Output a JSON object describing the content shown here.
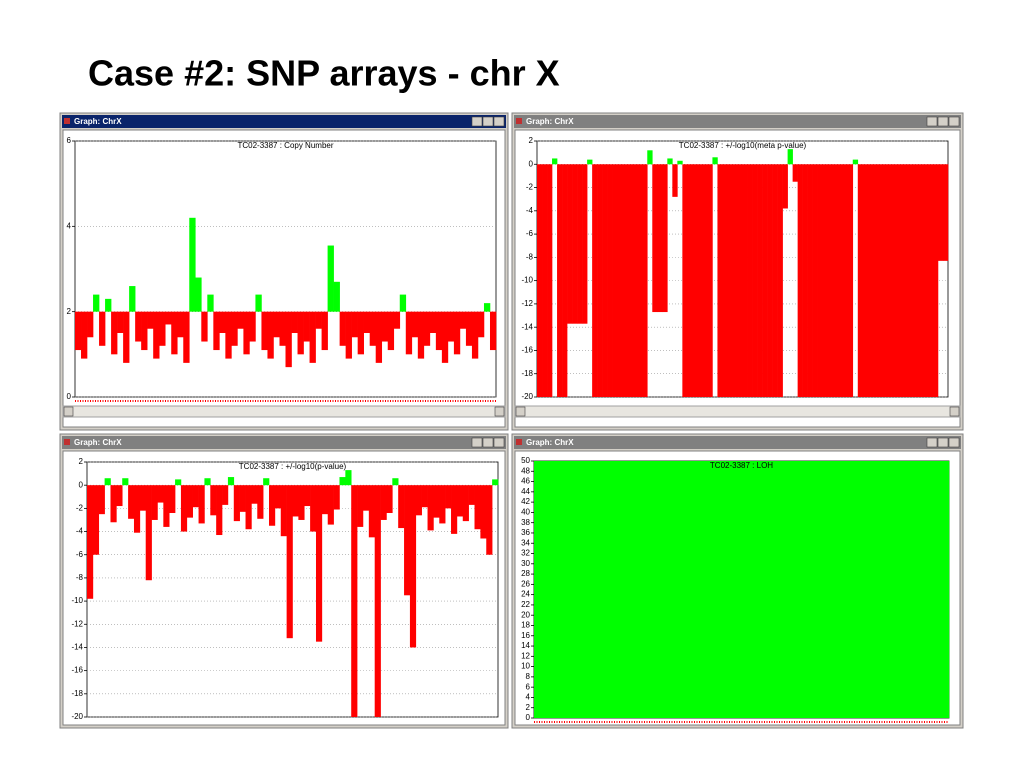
{
  "title": "Case #2: SNP arrays - chr X",
  "chart_data": [
    {
      "type": "bar",
      "window_title": "Graph: ChrX",
      "title": "TC02-3387 : Copy Number",
      "baseline": 2,
      "color": "#ff0000",
      "color_above": "#00ff00",
      "grid": true,
      "ylim": [
        0,
        6
      ],
      "yticks": [
        0,
        2,
        4,
        6
      ],
      "values": [
        1.1,
        0.9,
        1.4,
        2.4,
        1.2,
        2.3,
        1.0,
        1.5,
        0.8,
        2.6,
        1.3,
        1.1,
        1.6,
        0.9,
        1.2,
        1.7,
        1.0,
        1.4,
        0.8,
        4.2,
        2.8,
        1.3,
        2.4,
        1.1,
        1.5,
        0.9,
        1.2,
        1.6,
        1.0,
        1.3,
        2.4,
        1.1,
        0.9,
        1.4,
        1.2,
        0.7,
        1.5,
        1.0,
        1.3,
        0.8,
        1.6,
        1.1,
        3.55,
        2.7,
        1.2,
        0.9,
        1.4,
        1.0,
        1.5,
        1.2,
        0.8,
        1.3,
        1.1,
        1.6,
        2.4,
        1.0,
        1.4,
        0.9,
        1.2,
        1.5,
        1.1,
        0.8,
        1.3,
        1.0,
        1.6,
        1.2,
        0.9,
        1.4,
        2.2,
        1.1
      ]
    },
    {
      "type": "bar",
      "window_title": "Graph: ChrX",
      "title": "TC02-3387 : +/-log10(meta p-value)",
      "baseline": 0,
      "color": "#ff0000",
      "color_above": "#00ff00",
      "grid": true,
      "ylim": [
        -20,
        2
      ],
      "yticks": [
        -20,
        -18,
        -16,
        -14,
        -12,
        -10,
        -8,
        -6,
        -4,
        -2,
        0,
        2
      ],
      "values": [
        -20,
        -20,
        -20,
        0.5,
        -20,
        -20,
        -13.7,
        -13.7,
        -13.7,
        -13.7,
        0.4,
        -20,
        -20,
        -20,
        -20,
        -20,
        -20,
        -20,
        -20,
        -20,
        -20,
        -20,
        1.2,
        -12.7,
        -12.7,
        -12.7,
        0.5,
        -2.8,
        0.3,
        -20,
        -20,
        -20,
        -20,
        -20,
        -20,
        0.6,
        -20,
        -20,
        -20,
        -20,
        -20,
        -20,
        -20,
        -20,
        -20,
        -20,
        -20,
        -20,
        -20,
        -3.8,
        1.3,
        -1.5,
        -20,
        -20,
        -20,
        -20,
        -20,
        -20,
        -20,
        -20,
        -20,
        -20,
        -20,
        0.4,
        -20,
        -20,
        -20,
        -20,
        -20,
        -20,
        -20,
        -20,
        -20,
        -20,
        -20,
        -20,
        -20,
        -20,
        -20,
        -20,
        -8.3,
        -8.3
      ]
    },
    {
      "type": "bar",
      "window_title": "Graph: ChrX",
      "title": "TC02-3387 : +/-log10(p-value)",
      "baseline": 0,
      "color": "#ff0000",
      "color_above": "#00ff00",
      "grid": true,
      "ylim": [
        -20,
        2
      ],
      "yticks": [
        -20,
        -18,
        -16,
        -14,
        -12,
        -10,
        -8,
        -6,
        -4,
        -2,
        0,
        2
      ],
      "values": [
        -9.8,
        -6,
        -2.5,
        0.6,
        -3.2,
        -1.8,
        0.6,
        -2.9,
        -4.1,
        -2.2,
        -8.2,
        -3.0,
        -1.5,
        -3.6,
        -2.4,
        0.5,
        -4.0,
        -2.8,
        -1.9,
        -3.3,
        0.6,
        -2.6,
        -4.3,
        -1.7,
        0.7,
        -3.1,
        -2.3,
        -3.8,
        -1.6,
        -2.9,
        0.6,
        -3.5,
        -2.0,
        -4.4,
        -13.2,
        -2.7,
        -3.0,
        -1.8,
        -4.0,
        -13.5,
        -2.5,
        -3.4,
        -2.1,
        0.7,
        1.3,
        -20,
        -3.6,
        -2.2,
        -4.5,
        -20,
        -3.0,
        -2.4,
        0.6,
        -3.7,
        -9.5,
        -14,
        -2.6,
        -1.9,
        -3.9,
        -2.8,
        -3.3,
        -2.0,
        -4.2,
        -2.7,
        -3.1,
        -1.7,
        -3.8,
        -4.6,
        -6,
        0.5
      ]
    },
    {
      "type": "bar",
      "window_title": "Graph: ChrX",
      "title": "TC02-3387 : LOH",
      "baseline": 0,
      "color": "#ff0000",
      "color_above": "#00ff00",
      "grid": false,
      "ylim": [
        0,
        50
      ],
      "yticks": [
        0,
        2,
        4,
        6,
        8,
        10,
        12,
        14,
        16,
        18,
        20,
        22,
        24,
        26,
        28,
        30,
        32,
        34,
        36,
        38,
        40,
        42,
        44,
        46,
        48,
        50
      ],
      "values": [
        50,
        50,
        50,
        50,
        50,
        50,
        50,
        50,
        50,
        50,
        50,
        50,
        50,
        50,
        50,
        50,
        50,
        50,
        50,
        50
      ]
    }
  ]
}
